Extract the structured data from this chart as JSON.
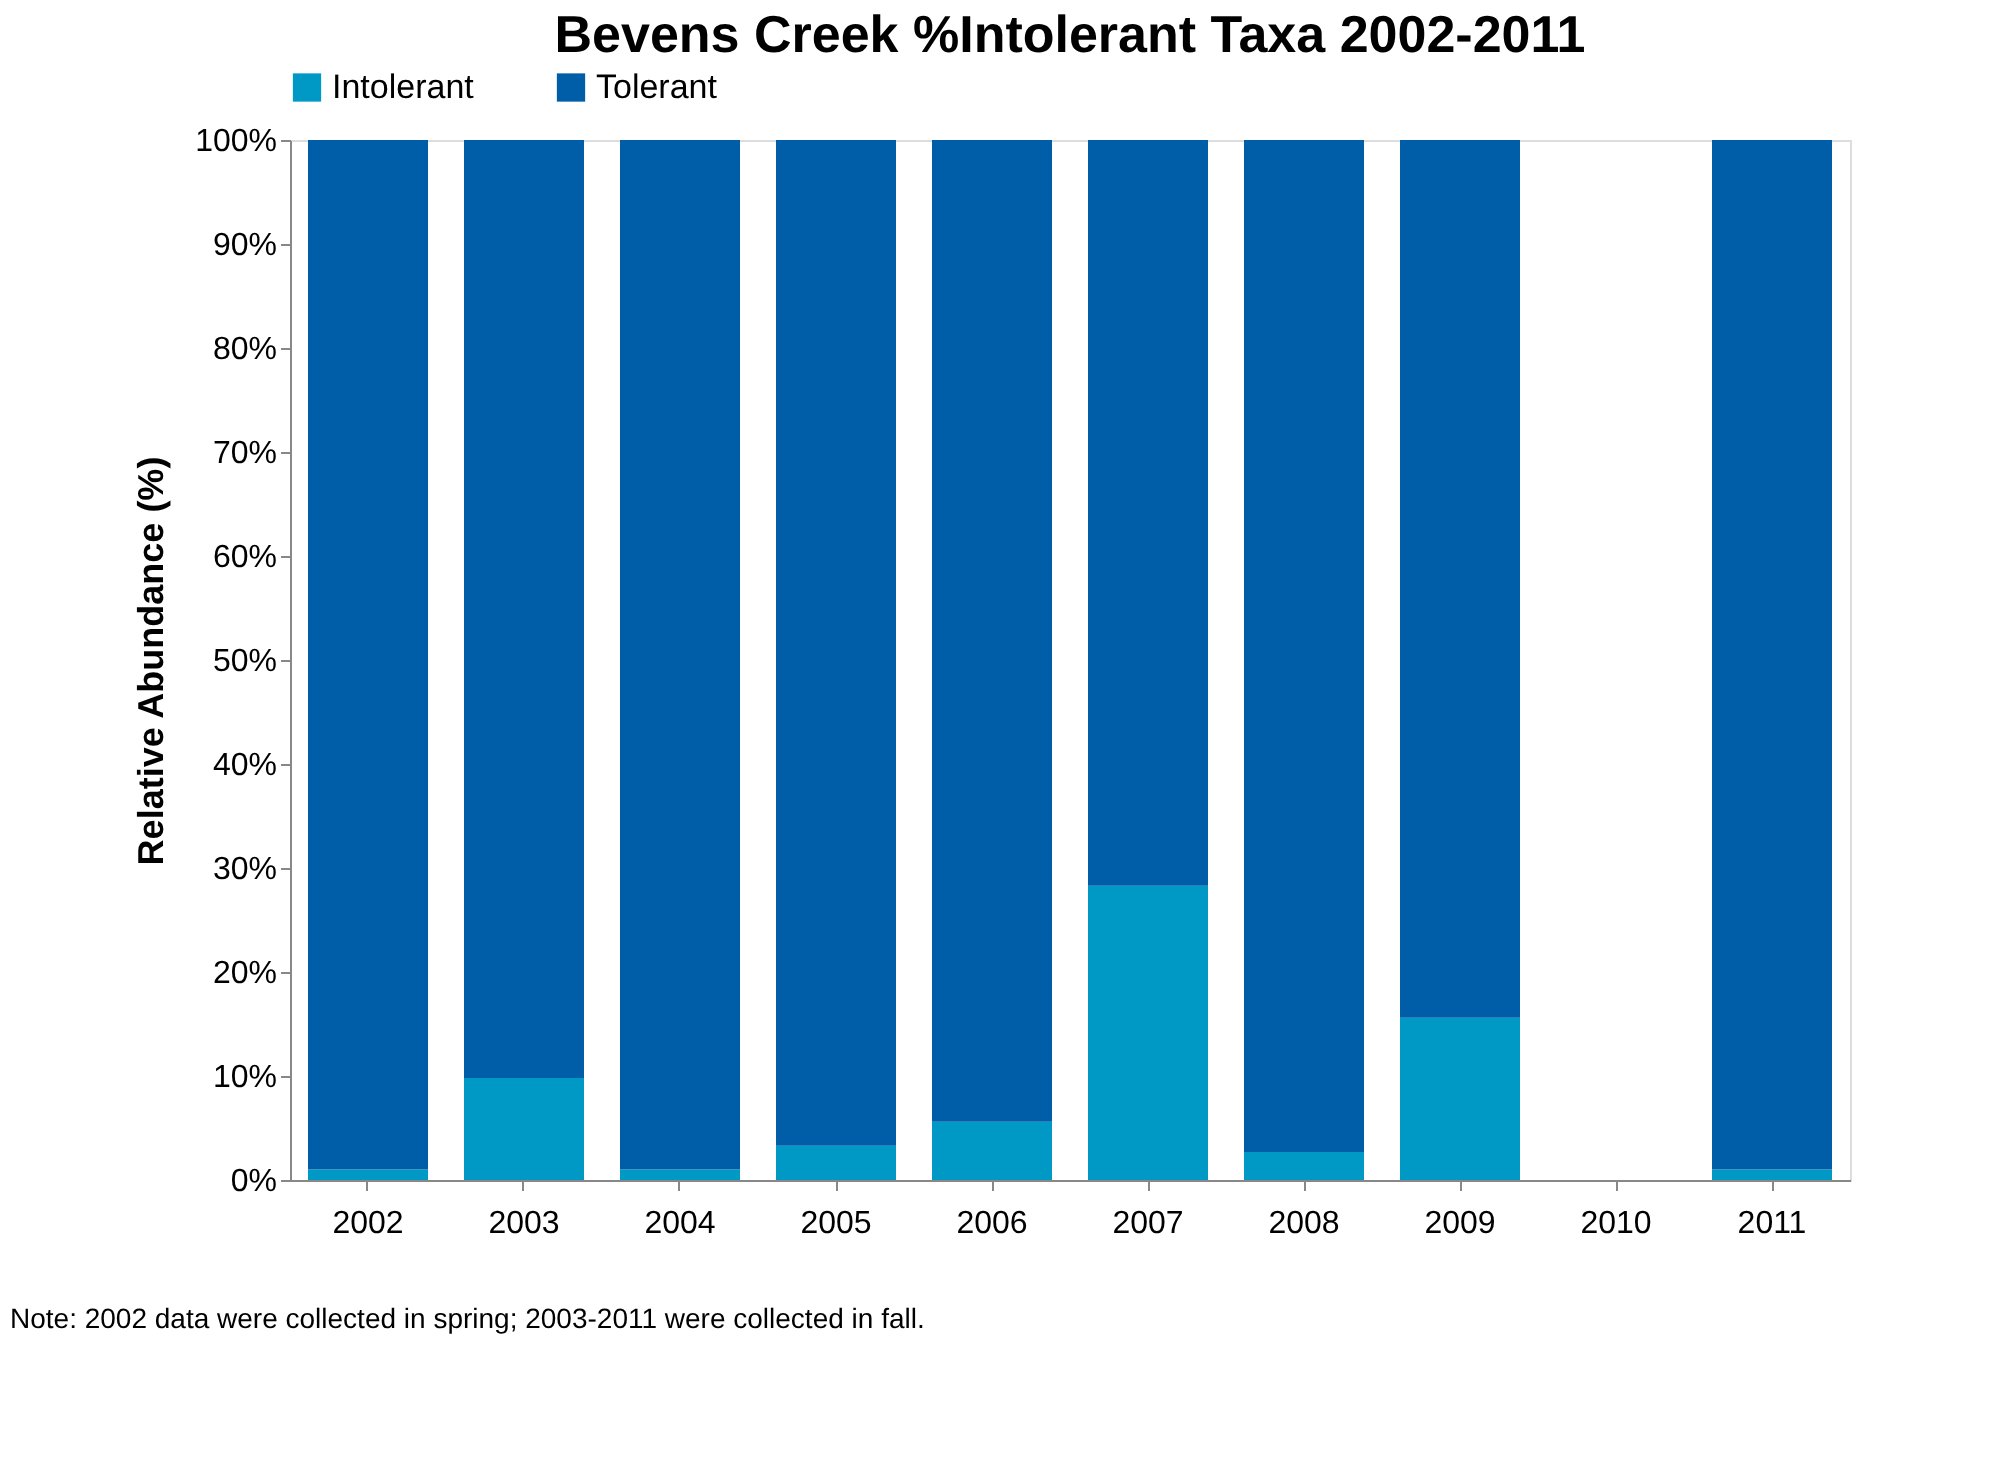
{
  "chart_data": {
    "type": "bar",
    "title": "Bevens Creek %Intolerant  Taxa 2002-2011",
    "ylabel": "Relative Abundance (%)",
    "categories": [
      "2002",
      "2003",
      "2004",
      "2005",
      "2006",
      "2007",
      "2008",
      "2009",
      "2010",
      "2011"
    ],
    "stacked": true,
    "series": [
      {
        "name": "Intolerant",
        "color": "#0099c6",
        "values": [
          1,
          9.8,
          1,
          3.3,
          5.6,
          28.3,
          2.7,
          15.6,
          null,
          1
        ]
      },
      {
        "name": "Tolerant",
        "color": "#005ea8",
        "values": [
          99,
          90.2,
          99,
          96.7,
          94.4,
          71.7,
          97.3,
          84.4,
          null,
          99
        ]
      }
    ],
    "ylim": [
      0,
      100
    ],
    "yticks": [
      {
        "value": 0,
        "label": "0%"
      },
      {
        "value": 10,
        "label": "10%"
      },
      {
        "value": 20,
        "label": "20%"
      },
      {
        "value": 30,
        "label": "30%"
      },
      {
        "value": 40,
        "label": "40%"
      },
      {
        "value": 50,
        "label": "50%"
      },
      {
        "value": 60,
        "label": "60%"
      },
      {
        "value": 70,
        "label": "70%"
      },
      {
        "value": 80,
        "label": "80%"
      },
      {
        "value": 90,
        "label": "90%"
      },
      {
        "value": 100,
        "label": "100%"
      }
    ],
    "grid": false,
    "legend": "top",
    "annotations": [
      "Note: 2002 data were collected in spring; 2003-2011 were collected in fall."
    ]
  }
}
